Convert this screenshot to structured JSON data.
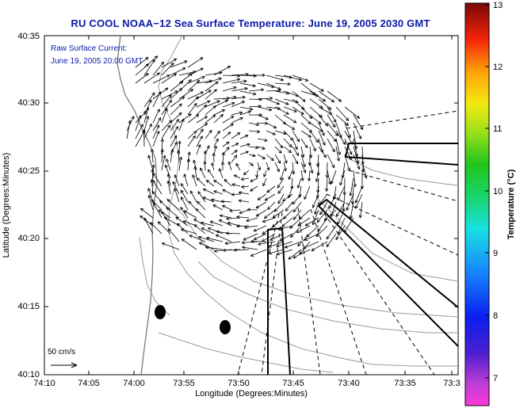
{
  "title": "RU COOL  NOAA−12  Sea Surface Temperature:  June 19, 2005 2030 GMT",
  "annotations": {
    "current_line1": "Raw Surface Current:",
    "current_line2": "June 19, 2005 20:00 GMT",
    "scale_label": "50 cm/s"
  },
  "axes": {
    "xlabel": "Longitude (Degrees:Minutes)",
    "ylabel": "Latitude (Degrees:Minutes)",
    "x_ticks": [
      "74:10",
      "74:05",
      "74:00",
      "73:55",
      "73:50",
      "73:45",
      "73:40",
      "73:35",
      "73:3"
    ],
    "y_ticks": [
      "40:35",
      "40:30",
      "40:25",
      "40:20",
      "40:15",
      "40:10"
    ]
  },
  "colorbar": {
    "label": "Temperature (°C)",
    "ticks": [
      "13",
      "12",
      "11",
      "10",
      "9",
      "8",
      "7"
    ],
    "range": [
      6.5,
      13
    ]
  },
  "colors": {
    "title": "#0a1aa8",
    "annotation": "#0a1aa8",
    "coast": "#7a7a7a",
    "contour": "#9a9a9a",
    "vector": "#000000"
  }
}
